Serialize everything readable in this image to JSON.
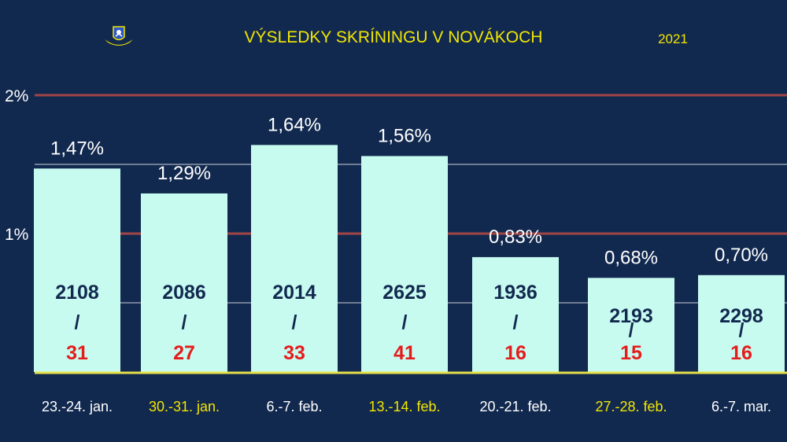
{
  "header": {
    "title": "VÝSLEDKY SKRÍNINGU V NOVÁKOCH",
    "year": "2021"
  },
  "colors": {
    "background": "#12294f",
    "bar_fill": "#c8fbf0",
    "title": "#f2e600",
    "grid_major": "#a14545",
    "grid_minor": "#8c98ab",
    "baseline": "#e6e04a",
    "tested_count": "#12294f",
    "positive_count": "#e51c1c",
    "label_white": "#ffffff",
    "label_yellow": "#f2e600"
  },
  "chart_data": {
    "type": "bar",
    "title": "VÝSLEDKY SKRÍNINGU V NOVÁKOCH",
    "subtitle": "2021",
    "xlabel": "",
    "ylabel": "",
    "ylim": [
      0,
      2
    ],
    "yticks": [
      "1%",
      "2%"
    ],
    "grid": true,
    "categories": [
      "23.-24. jan.",
      "30.-31. jan.",
      "6.-7. feb.",
      "13.-14. feb.",
      "20.-21. feb.",
      "27.-28. feb.",
      "6.-7. mar."
    ],
    "category_label_colors": [
      "white",
      "yellow",
      "white",
      "yellow",
      "white",
      "yellow",
      "white"
    ],
    "values": [
      1.47,
      1.29,
      1.64,
      1.56,
      0.83,
      0.68,
      0.7
    ],
    "value_labels": [
      "1,47%",
      "1,29%",
      "1,64%",
      "1,56%",
      "0,83%",
      "0,68%",
      "0,70%"
    ],
    "tested": [
      "2108",
      "2086",
      "2014",
      "2625",
      "1936",
      "2193",
      "2298"
    ],
    "separator": "/",
    "positives": [
      "31",
      "27",
      "33",
      "41",
      "16",
      "15",
      "16"
    ]
  }
}
